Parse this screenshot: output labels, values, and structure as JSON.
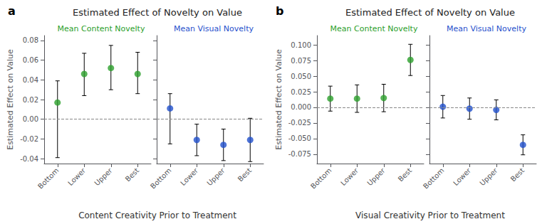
{
  "chart_data": [
    {
      "type": "scatter",
      "title": "Estimated Effect of Novelty on Value",
      "x_label": "Content Creativity Prior to Treatment",
      "y_label": "Estimated Effect on Value",
      "annotations": [
        {
          "text": "a"
        },
        {
          "y": 0,
          "line_style": "dashed"
        }
      ],
      "categories": [
        "Bottom",
        "Lower",
        "Upper",
        "Best"
      ],
      "series": [
        {
          "name": "Mean Content Novelty",
          "color": "#2ca02c",
          "values": [
            0.017,
            0.046,
            0.052,
            0.046
          ],
          "lower_err": [
            0.056,
            0.022,
            0.022,
            0.02
          ],
          "upper_err": [
            0.022,
            0.021,
            0.023,
            0.022
          ]
        },
        {
          "name": "Mean Visual Novelty",
          "color": "#1f4fcc",
          "values": [
            0.011,
            -0.021,
            -0.026,
            -0.021
          ],
          "lower_err": [
            0.036,
            0.016,
            0.016,
            0.022
          ],
          "upper_err": [
            0.015,
            0.016,
            0.016,
            0.022
          ]
        }
      ],
      "ylim": [
        -0.045,
        0.085
      ],
      "yticks": [
        -0.04,
        -0.02,
        {
          "value": 0,
          "label": "0.00"
        },
        0.02,
        0.04,
        0.06,
        0.08
      ],
      "grid": false
    },
    {
      "type": "scatter",
      "title": "Estimated Effect of Novelty on Value",
      "x_label": "Visual Creativity Prior to Treatment",
      "y_label": "Estimated Effect on Value",
      "annotations": [
        {
          "text": "b"
        },
        {
          "y": 0,
          "line_style": "dashed"
        }
      ],
      "categories": [
        "Bottom",
        "Lower",
        "Upper",
        "Best"
      ],
      "series": [
        {
          "name": "Mean Content Novelty",
          "color": "#2ca02c",
          "values": [
            0.014,
            0.014,
            0.015,
            0.076
          ],
          "lower_err": [
            0.02,
            0.022,
            0.022,
            0.025
          ],
          "upper_err": [
            0.02,
            0.022,
            0.022,
            0.025
          ]
        },
        {
          "name": "Mean Visual Novelty",
          "color": "#1f4fcc",
          "values": [
            0.001,
            -0.002,
            -0.004,
            -0.06
          ],
          "lower_err": [
            0.018,
            0.017,
            0.016,
            0.016
          ],
          "upper_err": [
            0.018,
            0.017,
            0.016,
            0.016
          ]
        }
      ],
      "ylim": [
        -0.09,
        0.115
      ],
      "yticks": [
        -0.075,
        {
          "value": -0.05,
          "label": "-0.050"
        },
        -0.025,
        {
          "value": 0,
          "label": "0.000"
        },
        0.025,
        {
          "value": 0.05,
          "label": "0.050"
        },
        0.075,
        {
          "value": 0.1,
          "label": "0.100"
        }
      ],
      "grid": false
    }
  ]
}
